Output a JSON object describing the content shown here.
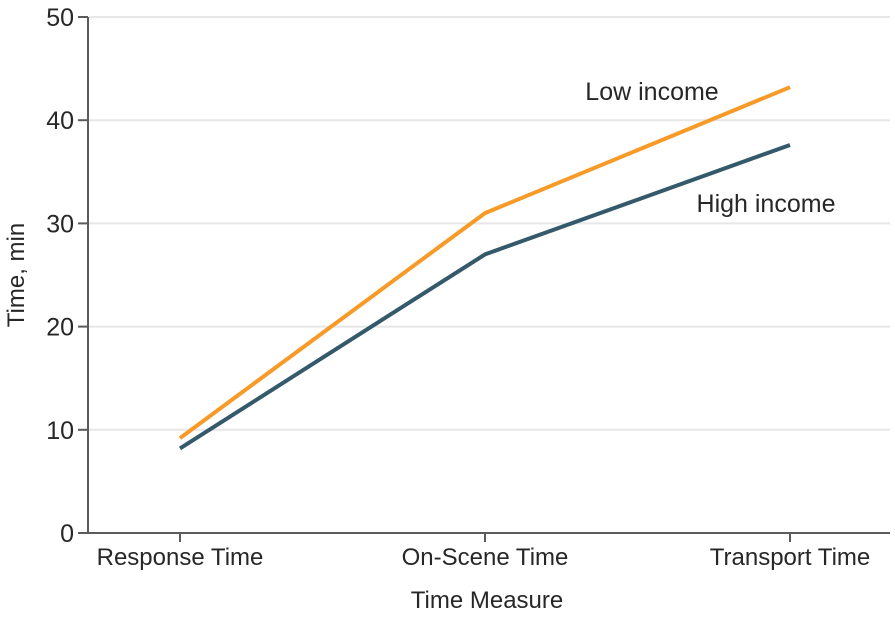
{
  "chart_data": {
    "type": "line",
    "categories": [
      "Response Time",
      "On-Scene Time",
      "Transport Time"
    ],
    "series": [
      {
        "name": "Low income",
        "values": [
          9.2,
          31.0,
          43.2
        ],
        "color": "#F79A28"
      },
      {
        "name": "High income",
        "values": [
          8.2,
          27.0,
          37.6
        ],
        "color": "#34596A"
      }
    ],
    "title": "",
    "xlabel": "Time Measure",
    "ylabel": "Time, min",
    "ylim": [
      0,
      50
    ],
    "yticks": [
      0,
      10,
      20,
      30,
      40,
      50
    ],
    "grid": "horizontal-light",
    "legend": "inline-labels-near-lines"
  },
  "colors": {
    "axis": "#5B5B5D",
    "gridline": "#E7E7E7",
    "text": "#272727",
    "background": "#FFFFFF"
  }
}
